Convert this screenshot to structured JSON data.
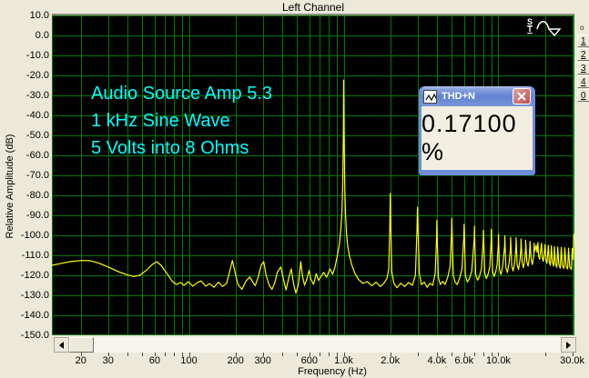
{
  "title": "Left Channel",
  "y_axis": {
    "label": "Relative Amplitude (dB)",
    "ticks": [
      "10.0",
      "0.0",
      "-10.0",
      "-20.0",
      "-30.0",
      "-40.0",
      "-50.0",
      "-60.0",
      "-70.0",
      "-80.0",
      "-90.0",
      "-100.0",
      "-110.0",
      "-120.0",
      "-130.0",
      "-140.0",
      "-150.0"
    ]
  },
  "x_axis": {
    "label": "Frequency (Hz)",
    "tick_labels": [
      {
        "f": 20,
        "label": "20"
      },
      {
        "f": 30,
        "label": "30"
      },
      {
        "f": 60,
        "label": "60"
      },
      {
        "f": 100,
        "label": "100"
      },
      {
        "f": 200,
        "label": "200"
      },
      {
        "f": 300,
        "label": "300"
      },
      {
        "f": 600,
        "label": "600"
      },
      {
        "f": 1000,
        "label": "1.0k"
      },
      {
        "f": 2000,
        "label": "2.0k"
      },
      {
        "f": 4000,
        "label": "4.0k"
      },
      {
        "f": 6000,
        "label": "6.0k"
      },
      {
        "f": 10000,
        "label": "10.0k"
      },
      {
        "f": 30000,
        "label": "30.0k"
      }
    ]
  },
  "annotation": {
    "lines": [
      "Audio Source Amp 5.3",
      "1 kHz Sine Wave",
      "5 Volts into 8 Ohms"
    ],
    "color": "#00ffff"
  },
  "generator_logo": {
    "top": "S",
    "bottom": "T"
  },
  "thd_window": {
    "title": "THD+N",
    "value": "0.17100 %"
  },
  "side_panel": {
    "tiny_label": "o",
    "buttons": [
      "1",
      "2",
      "3",
      "4",
      "0"
    ]
  },
  "icons": {
    "titlebar_icon": "waveform-zigzag-icon",
    "close_icon": "close-x-icon",
    "scroll_left": "left-arrow-icon",
    "scroll_right": "right-arrow-icon",
    "plot_marker": "sine-wave-icon"
  },
  "colors": {
    "panel_bg": "#ece9d8",
    "plot_bg": "#000000",
    "grid": "#007b00",
    "trace": "#ffff00",
    "annotation": "#00ffff",
    "titlebar_blue": "#6082d2",
    "close_red": "#cc7573",
    "thd_body": "#f2efe2"
  },
  "chart_data": {
    "type": "line",
    "title": "Left Channel",
    "xlabel": "Frequency (Hz)",
    "ylabel": "Relative Amplitude (dB)",
    "x_scale": "log",
    "x_range": [
      13,
      31000
    ],
    "y_range": [
      -150,
      10
    ],
    "grid_db_step": 10,
    "grid_freqs": [
      20,
      30,
      40,
      50,
      60,
      70,
      80,
      90,
      100,
      200,
      300,
      400,
      500,
      600,
      700,
      800,
      900,
      1000,
      2000,
      3000,
      4000,
      5000,
      6000,
      7000,
      8000,
      9000,
      10000,
      20000,
      30000
    ],
    "legend": "none",
    "series": [
      {
        "name": "spectrum",
        "color": "#ffff00",
        "points": [
          [
            13,
            -115
          ],
          [
            15,
            -114
          ],
          [
            17,
            -113.2
          ],
          [
            20,
            -112.6
          ],
          [
            23,
            -112.7
          ],
          [
            26,
            -113.8
          ],
          [
            30,
            -115.8
          ],
          [
            35,
            -118.2
          ],
          [
            40,
            -119.8
          ],
          [
            44,
            -120.6
          ],
          [
            48,
            -120
          ],
          [
            53,
            -117.5
          ],
          [
            58,
            -114.5
          ],
          [
            62,
            -113.2
          ],
          [
            66,
            -115
          ],
          [
            72,
            -119
          ],
          [
            78,
            -123
          ],
          [
            83,
            -124.6
          ],
          [
            88,
            -123.6
          ],
          [
            93,
            -125
          ],
          [
            99,
            -123.2
          ],
          [
            106,
            -125.4
          ],
          [
            113,
            -123.6
          ],
          [
            120,
            -122.8
          ],
          [
            128,
            -125.4
          ],
          [
            136,
            -124.2
          ],
          [
            145,
            -126
          ],
          [
            155,
            -123.4
          ],
          [
            165,
            -125.6
          ],
          [
            175,
            -124
          ],
          [
            184,
            -117.5
          ],
          [
            191,
            -112.6
          ],
          [
            198,
            -118
          ],
          [
            207,
            -124.5
          ],
          [
            220,
            -127
          ],
          [
            233,
            -123
          ],
          [
            247,
            -120.8
          ],
          [
            258,
            -123.2
          ],
          [
            268,
            -125.2
          ],
          [
            280,
            -121
          ],
          [
            293,
            -115
          ],
          [
            304,
            -113.2
          ],
          [
            315,
            -120
          ],
          [
            330,
            -125
          ],
          [
            344,
            -127
          ],
          [
            358,
            -124
          ],
          [
            372,
            -118.5
          ],
          [
            392,
            -115.8
          ],
          [
            408,
            -122
          ],
          [
            424,
            -127.4
          ],
          [
            442,
            -121
          ],
          [
            458,
            -116.8
          ],
          [
            474,
            -124
          ],
          [
            490,
            -128.8
          ],
          [
            508,
            -125
          ],
          [
            528,
            -113.2
          ],
          [
            542,
            -120.5
          ],
          [
            558,
            -125
          ],
          [
            577,
            -122
          ],
          [
            597,
            -117.6
          ],
          [
            614,
            -122
          ],
          [
            638,
            -124.5
          ],
          [
            665,
            -119.2
          ],
          [
            688,
            -122.5
          ],
          [
            714,
            -120.5
          ],
          [
            742,
            -118.5
          ],
          [
            775,
            -121
          ],
          [
            815,
            -116.8
          ],
          [
            848,
            -119.5
          ],
          [
            878,
            -116
          ],
          [
            908,
            -110.5
          ],
          [
            938,
            -104.5
          ],
          [
            958,
            -97
          ],
          [
            974,
            -88
          ],
          [
            986,
            -74
          ],
          [
            995,
            -48
          ],
          [
            1000,
            -22.3
          ],
          [
            1006,
            -50
          ],
          [
            1016,
            -76
          ],
          [
            1028,
            -90
          ],
          [
            1042,
            -99
          ],
          [
            1062,
            -105.5
          ],
          [
            1092,
            -110.5
          ],
          [
            1130,
            -115
          ],
          [
            1180,
            -119
          ],
          [
            1245,
            -122
          ],
          [
            1330,
            -124
          ],
          [
            1420,
            -123.2
          ],
          [
            1520,
            -125.2
          ],
          [
            1620,
            -123.4
          ],
          [
            1720,
            -125.6
          ],
          [
            1820,
            -124
          ],
          [
            1905,
            -121.5
          ],
          [
            1955,
            -117
          ],
          [
            1983,
            -97
          ],
          [
            2000,
            -79
          ],
          [
            2018,
            -97
          ],
          [
            2045,
            -118
          ],
          [
            2110,
            -124
          ],
          [
            2210,
            -126.2
          ],
          [
            2340,
            -124
          ],
          [
            2480,
            -125.6
          ],
          [
            2620,
            -123.6
          ],
          [
            2780,
            -125
          ],
          [
            2905,
            -120
          ],
          [
            2975,
            -98
          ],
          [
            3000,
            -86
          ],
          [
            3028,
            -98
          ],
          [
            3080,
            -119
          ],
          [
            3180,
            -124.6
          ],
          [
            3320,
            -123.4
          ],
          [
            3460,
            -126
          ],
          [
            3600,
            -124
          ],
          [
            3760,
            -125
          ],
          [
            3905,
            -119
          ],
          [
            3980,
            -102
          ],
          [
            4000,
            -92.5
          ],
          [
            4022,
            -102
          ],
          [
            4090,
            -121
          ],
          [
            4210,
            -124.6
          ],
          [
            4360,
            -123
          ],
          [
            4520,
            -124.6
          ],
          [
            4700,
            -121
          ],
          [
            4870,
            -115.5
          ],
          [
            4975,
            -99
          ],
          [
            5000,
            -91.5
          ],
          [
            5028,
            -99
          ],
          [
            5110,
            -120
          ],
          [
            5260,
            -123.6
          ],
          [
            5420,
            -124.6
          ],
          [
            5610,
            -121.5
          ],
          [
            5810,
            -117
          ],
          [
            5975,
            -101
          ],
          [
            6000,
            -94.5
          ],
          [
            6030,
            -101
          ],
          [
            6120,
            -120
          ],
          [
            6300,
            -123.4
          ],
          [
            6510,
            -121.5
          ],
          [
            6720,
            -117.8
          ],
          [
            6975,
            -102
          ],
          [
            7000,
            -95.5
          ],
          [
            7035,
            -102
          ],
          [
            7130,
            -119.5
          ],
          [
            7330,
            -122.4
          ],
          [
            7540,
            -120.5
          ],
          [
            7760,
            -116.8
          ],
          [
            7975,
            -103
          ],
          [
            8000,
            -97.5
          ],
          [
            8040,
            -103
          ],
          [
            8150,
            -118.6
          ],
          [
            8350,
            -121.6
          ],
          [
            8570,
            -119.5
          ],
          [
            8790,
            -115.8
          ],
          [
            8975,
            -103
          ],
          [
            9000,
            -97
          ],
          [
            9045,
            -103
          ],
          [
            9160,
            -117.8
          ],
          [
            9370,
            -120.6
          ],
          [
            9590,
            -118.6
          ],
          [
            9800,
            -114.8
          ],
          [
            9975,
            -105
          ],
          [
            10000,
            -99.5
          ],
          [
            10050,
            -105
          ],
          [
            10170,
            -117
          ],
          [
            10390,
            -119.6
          ],
          [
            10650,
            -115.6
          ],
          [
            10970,
            -105.5
          ],
          [
            11000,
            -100.2
          ],
          [
            11060,
            -105.5
          ],
          [
            11180,
            -116.2
          ],
          [
            11430,
            -118.6
          ],
          [
            11720,
            -114
          ],
          [
            11975,
            -106
          ],
          [
            12000,
            -101
          ],
          [
            12070,
            -106
          ],
          [
            12200,
            -115.4
          ],
          [
            12460,
            -117.8
          ],
          [
            12760,
            -113.2
          ],
          [
            12980,
            -106
          ],
          [
            13000,
            -101.2
          ],
          [
            13080,
            -106
          ],
          [
            13220,
            -114.6
          ],
          [
            13490,
            -117
          ],
          [
            13790,
            -112.4
          ],
          [
            13985,
            -106.2
          ],
          [
            14000,
            -101.8
          ],
          [
            14090,
            -106.2
          ],
          [
            14240,
            -113.8
          ],
          [
            14520,
            -116.2
          ],
          [
            14820,
            -111.6
          ],
          [
            14990,
            -106.6
          ],
          [
            15000,
            -102.4
          ],
          [
            15100,
            -106.6
          ],
          [
            15260,
            -113.2
          ],
          [
            15550,
            -115.4
          ],
          [
            15860,
            -110.8
          ],
          [
            16000,
            -103
          ],
          [
            16120,
            -107
          ],
          [
            16300,
            -112.4
          ],
          [
            16600,
            -114.6
          ],
          [
            16920,
            -110
          ],
          [
            17000,
            -104
          ],
          [
            17150,
            -108
          ],
          [
            17350,
            -106.5
          ],
          [
            17550,
            -105
          ],
          [
            17780,
            -108.5
          ],
          [
            18000,
            -103.6
          ],
          [
            18180,
            -110
          ],
          [
            18450,
            -112
          ],
          [
            18740,
            -108
          ],
          [
            19000,
            -104
          ],
          [
            19200,
            -111
          ],
          [
            19500,
            -113
          ],
          [
            19800,
            -109
          ],
          [
            20000,
            -104.6
          ],
          [
            20250,
            -112
          ],
          [
            20600,
            -114
          ],
          [
            21000,
            -105
          ],
          [
            21260,
            -113
          ],
          [
            21650,
            -115
          ],
          [
            22000,
            -105.2
          ],
          [
            22300,
            -113.4
          ],
          [
            22750,
            -115.4
          ],
          [
            23000,
            -105.6
          ],
          [
            23350,
            -114
          ],
          [
            23850,
            -116
          ],
          [
            24200,
            -105.8
          ],
          [
            24550,
            -114.4
          ],
          [
            25100,
            -116.4
          ],
          [
            25500,
            -106
          ],
          [
            25900,
            -115
          ],
          [
            26500,
            -116.6
          ],
          [
            26900,
            -106.2
          ],
          [
            27350,
            -115.4
          ],
          [
            28000,
            -116.8
          ],
          [
            28400,
            -106.4
          ],
          [
            28900,
            -115.8
          ],
          [
            29600,
            -117
          ],
          [
            30000,
            -106.6
          ],
          [
            30400,
            -112
          ],
          [
            30800,
            -99.5
          ],
          [
            31000,
            -100
          ]
        ]
      }
    ]
  }
}
